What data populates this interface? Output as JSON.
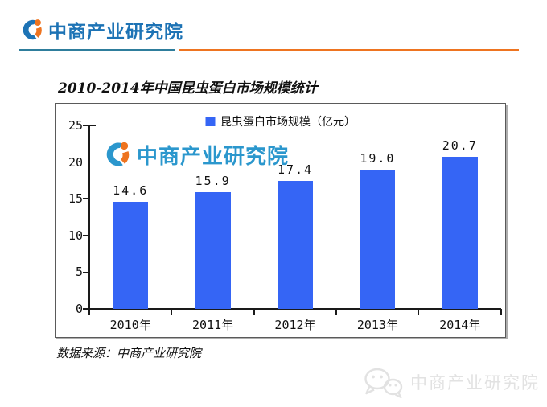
{
  "header": {
    "logo_text": "中商产业研究院"
  },
  "page": {
    "title": "2010-2014年中国昆虫蛋白市场规模统计",
    "source_note": "数据来源：中商产业研究院"
  },
  "watermarks": {
    "chart_logo_text": "中商产业研究院",
    "wechat_text": "中商产业研究院"
  },
  "colors": {
    "bar": "#3565F5",
    "logo_blue": "#1d73b5",
    "logo_orange": "#ee7420",
    "divider_teal": "#2e7d9c",
    "divider_orange": "#ee7420",
    "watermark_blue": "#2b97cd",
    "wm_gray": "#e2e2e2",
    "axis": "#1a1a1a"
  },
  "chart_data": {
    "type": "bar",
    "title": "2010-2014年中国昆虫蛋白市场规模统计",
    "legend": "昆虫蛋白市场规模（亿元）",
    "categories": [
      "2010年",
      "2011年",
      "2012年",
      "2013年",
      "2014年"
    ],
    "values": [
      14.6,
      15.9,
      17.4,
      19.0,
      20.7
    ],
    "value_decimals": 1,
    "ylim": [
      0,
      25
    ],
    "yticks": [
      0,
      5,
      10,
      15,
      20,
      25
    ],
    "xlabel": "",
    "ylabel": "",
    "grid": false,
    "legend_position": "top-center",
    "bar_color": "#3565F5"
  }
}
